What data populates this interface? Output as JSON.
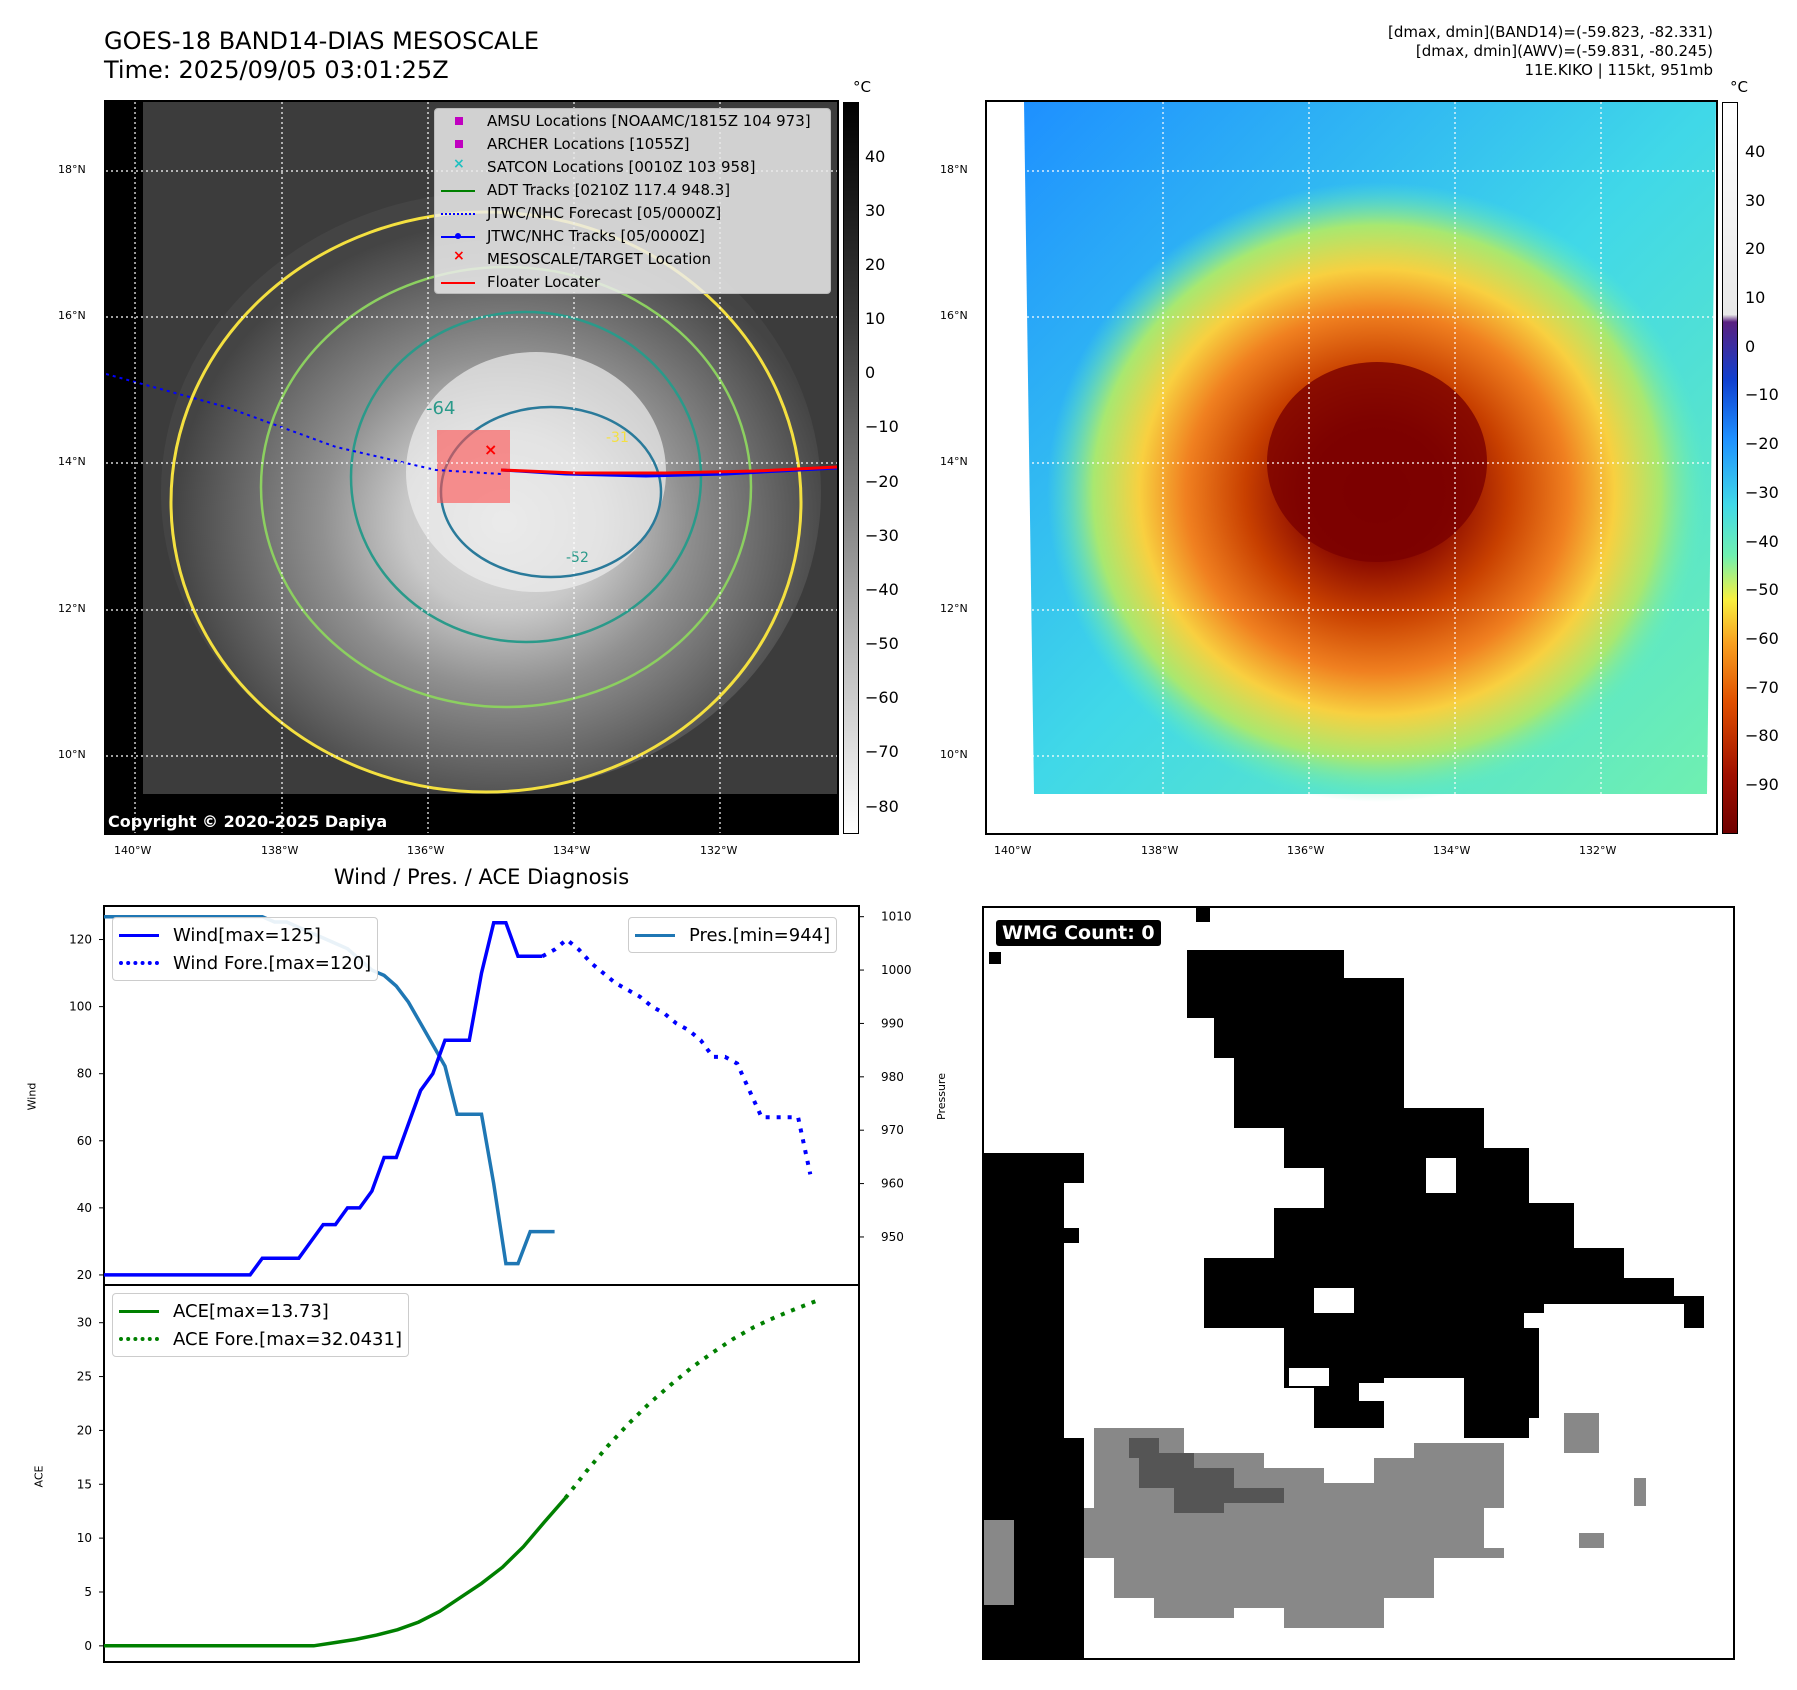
{
  "header": {
    "title_line1": "GOES-18 BAND14-DIAS MESOSCALE",
    "title_line2": "Time: 2025/09/05 03:01:25Z",
    "info_line1": "[dmax, dmin](BAND14)=(-59.823, -82.331)",
    "info_line2": "[dmax, dmin](AWV)=(-59.831, -80.245)",
    "info_line3": "11E.KIKO | 115kt, 951mb"
  },
  "map_left": {
    "lat_labels": [
      "18°N",
      "16°N",
      "14°N",
      "12°N",
      "10°N"
    ],
    "lon_labels": [
      "140°W",
      "138°W",
      "136°W",
      "134°W",
      "132°W"
    ],
    "copyright": "Copyright © 2020-2025 Dapiya",
    "contour_labels": [
      "-64",
      "-52",
      "-31"
    ],
    "legend": [
      {
        "label": "AMSU Locations [NOAAMC/1815Z 104 973]",
        "color": "#c000c0",
        "marker": "square"
      },
      {
        "label": "ARCHER Locations [1055Z]",
        "color": "#c000c0",
        "marker": "square"
      },
      {
        "label": "SATCON Locations [0010Z 103 958]",
        "color": "#20c0c0",
        "marker": "x"
      },
      {
        "label": "ADT Tracks [0210Z 117.4 948.3]",
        "color": "#008000",
        "marker": "line"
      },
      {
        "label": "JTWC/NHC Forecast [05/0000Z]",
        "color": "#0000ff",
        "marker": "dotted"
      },
      {
        "label": "JTWC/NHC Tracks [05/0000Z]",
        "color": "#0000ff",
        "marker": "line-dot"
      },
      {
        "label": "MESOSCALE/TARGET Location",
        "color": "#ff0000",
        "marker": "x"
      },
      {
        "label": "Floater Locater",
        "color": "#ff0000",
        "marker": "line"
      }
    ],
    "colorbar_unit": "°C",
    "colorbar_ticks": [
      "40",
      "30",
      "20",
      "10",
      "0",
      "−10",
      "−20",
      "−30",
      "−40",
      "−50",
      "−60",
      "−70",
      "−80"
    ]
  },
  "map_right": {
    "lat_labels": [
      "18°N",
      "16°N",
      "14°N",
      "12°N",
      "10°N"
    ],
    "lon_labels": [
      "140°W",
      "138°W",
      "136°W",
      "134°W",
      "132°W"
    ],
    "colorbar_unit": "°C",
    "colorbar_ticks": [
      "40",
      "30",
      "20",
      "10",
      "0",
      "−10",
      "−20",
      "−30",
      "−40",
      "−50",
      "−60",
      "−70",
      "−80",
      "−90"
    ]
  },
  "wmg": {
    "label": "WMG Count: 0"
  },
  "chart_data": [
    {
      "type": "line",
      "title": "Wind / Pres. / ACE Diagnosis",
      "ylabel": "Wind",
      "y2label": "Pressure",
      "ylim": [
        17,
        130
      ],
      "y2lim": [
        941,
        1012
      ],
      "yticks": [
        "120",
        "100",
        "80",
        "60",
        "40",
        "20"
      ],
      "y2ticks": [
        "1010",
        "1000",
        "990",
        "980",
        "970",
        "960",
        "950"
      ],
      "series": [
        {
          "name": "Wind[max=125]",
          "color": "#0000ff",
          "style": "solid",
          "x": [
            0,
            1,
            2,
            3,
            4,
            5,
            6,
            7,
            8,
            9,
            10,
            11,
            12,
            13,
            14,
            15,
            16,
            17,
            18,
            19,
            20,
            21,
            22,
            23,
            24,
            25,
            26,
            27,
            28,
            29,
            30,
            31,
            32,
            33,
            34,
            35,
            36,
            37,
            38,
            39,
            40,
            41,
            42,
            43,
            44,
            45,
            46
          ],
          "values": [
            20,
            20,
            20,
            20,
            20,
            20,
            20,
            20,
            20,
            20,
            20,
            20,
            20,
            25,
            25,
            25,
            25,
            30,
            35,
            35,
            40,
            40,
            45,
            55,
            55,
            65,
            75,
            80,
            90,
            90,
            90,
            110,
            125,
            125,
            115,
            115,
            115,
            null,
            null,
            null,
            null,
            null,
            null,
            null,
            null,
            null,
            null
          ]
        },
        {
          "name": "Wind Fore.[max=120]",
          "color": "#0000ff",
          "style": "dotted",
          "x": [
            36,
            37,
            38,
            39,
            40,
            41,
            42,
            43,
            44,
            45,
            46,
            47,
            48,
            49,
            50,
            51,
            52,
            53,
            54,
            55,
            56,
            57,
            58
          ],
          "values": [
            115,
            117,
            120,
            117,
            113,
            110,
            107,
            105,
            103,
            100,
            98,
            95,
            93,
            90,
            85,
            85,
            83,
            75,
            67,
            67,
            67,
            67,
            50
          ]
        },
        {
          "name": "Pres.[min=944]",
          "color": "#1f77b4",
          "style": "solid",
          "axis": "y2",
          "x": [
            0,
            1,
            2,
            3,
            4,
            5,
            6,
            7,
            8,
            9,
            10,
            11,
            12,
            13,
            14,
            15,
            16,
            17,
            18,
            19,
            20,
            21,
            22,
            23,
            24,
            25,
            26,
            27,
            28,
            29,
            30,
            31,
            32,
            33,
            34,
            35,
            36,
            37
          ],
          "values": [
            1010,
            1010,
            1010,
            1010,
            1010,
            1010,
            1010,
            1010,
            1010,
            1010,
            1010,
            1010,
            1010,
            1010,
            1009,
            1009,
            1008,
            1007,
            1006,
            1005,
            1004,
            1002,
            1000,
            999,
            997,
            994,
            990,
            986,
            982,
            973,
            973,
            973,
            960,
            945,
            945,
            951,
            951,
            951
          ]
        }
      ]
    },
    {
      "type": "line",
      "ylabel": "ACE",
      "ylim": [
        -1.5,
        33.5
      ],
      "yticks": [
        "30",
        "25",
        "20",
        "15",
        "10",
        "5",
        "0"
      ],
      "series": [
        {
          "name": "ACE[max=13.73]",
          "color": "#008000",
          "style": "solid",
          "x": [
            0,
            5,
            10,
            15,
            20,
            22,
            24,
            26,
            28,
            30,
            32,
            34,
            36,
            38,
            40,
            42,
            44,
            46,
            48,
            50,
            52,
            54,
            56
          ],
          "values": [
            0,
            0,
            0,
            0,
            0,
            0.3,
            0.6,
            1.0,
            1.5,
            2.2,
            3.2,
            4.5,
            5.8,
            7.3,
            9.2,
            11.5,
            13.73,
            null,
            null,
            null,
            null,
            null,
            null
          ]
        },
        {
          "name": "ACE Fore.[max=32.0431]",
          "color": "#008000",
          "style": "dotted",
          "x": [
            44,
            46,
            48,
            50,
            52,
            54,
            56,
            58,
            60,
            62,
            64,
            66,
            68
          ],
          "values": [
            13.73,
            16.2,
            18.5,
            20.6,
            22.5,
            24.2,
            25.8,
            27.2,
            28.5,
            29.6,
            30.5,
            31.3,
            32.0431
          ]
        }
      ]
    }
  ]
}
